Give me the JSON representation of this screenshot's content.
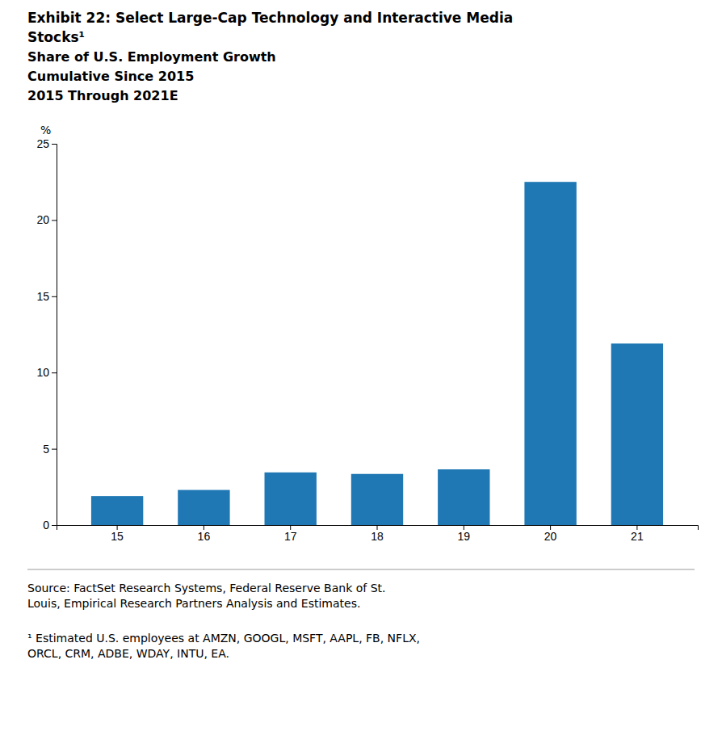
{
  "chart_data": {
    "type": "bar",
    "title": [
      "Exhibit 22: Select Large-Cap Technology and Interactive Media",
      "Stocks¹"
    ],
    "subtitle": [
      "Share of U.S. Employment Growth",
      "Cumulative Since 2015",
      "2015 Through 2021E"
    ],
    "y_label": "%",
    "categories": [
      "15",
      "16",
      "17",
      "18",
      "19",
      "20",
      "21"
    ],
    "values": [
      1.9,
      2.3,
      3.45,
      3.35,
      3.65,
      22.5,
      11.9
    ],
    "ylim": [
      0,
      25
    ],
    "yticks": [
      0,
      5,
      10,
      15,
      20,
      25
    ],
    "grid": false,
    "annotations": [
      "Source: FactSet Research Systems, Federal Reserve Bank of St.\nLouis, Empirical Research Partners Analysis and Estimates.",
      "¹ Estimated U.S. employees at AMZN, GOOGL, MSFT, AAPL, FB, NFLX,\nORCL, CRM, ADBE, WDAY, INTU, EA."
    ]
  }
}
